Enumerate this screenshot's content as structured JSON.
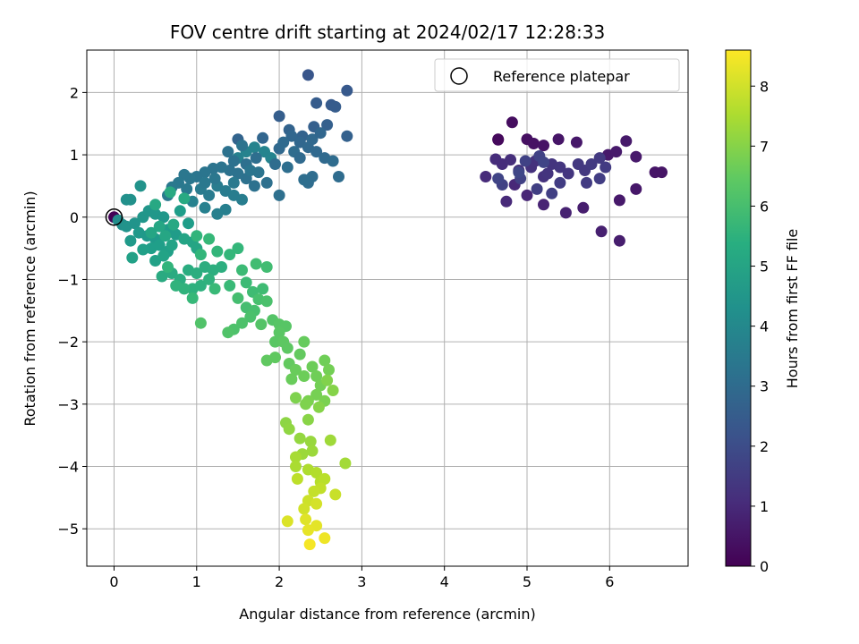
{
  "chart_data": {
    "type": "scatter",
    "title": "FOV centre drift starting at 2024/02/17 12:28:33",
    "xlabel": "Angular distance from reference (arcmin)",
    "ylabel": "Rotation from reference (arcmin)",
    "xlim": [
      -0.33,
      6.95
    ],
    "ylim": [
      -5.6,
      2.68
    ],
    "xticks": [
      0,
      1,
      2,
      3,
      4,
      5,
      6
    ],
    "yticks": [
      -5,
      -4,
      -3,
      -2,
      -1,
      0,
      1,
      2
    ],
    "grid": true,
    "colormap": "viridis",
    "colorbar": {
      "label": "Hours from first FF file",
      "range": [
        0,
        8.6
      ],
      "ticks": [
        0,
        1,
        2,
        3,
        4,
        5,
        6,
        7,
        8
      ]
    },
    "legend": {
      "position": "top-right",
      "entries": [
        "Reference platepar"
      ]
    },
    "reference_point": {
      "x": 0,
      "y": 0
    },
    "points_description": "x = angular distance (arcmin), y = rotation (arcmin), t = hours from first FF file",
    "points": [
      [
        0.0,
        0.0,
        0.05
      ],
      [
        4.65,
        1.25,
        0.15
      ],
      [
        4.65,
        1.24,
        0.2
      ],
      [
        4.82,
        1.52,
        0.3
      ],
      [
        5.0,
        1.25,
        0.35
      ],
      [
        5.08,
        1.18,
        0.4
      ],
      [
        5.2,
        1.15,
        0.45
      ],
      [
        5.38,
        1.25,
        0.5
      ],
      [
        5.6,
        1.2,
        0.55
      ],
      [
        5.98,
        1.0,
        0.6
      ],
      [
        6.08,
        1.05,
        0.62
      ],
      [
        6.2,
        1.22,
        0.58
      ],
      [
        6.32,
        0.97,
        0.6
      ],
      [
        6.55,
        0.72,
        0.5
      ],
      [
        6.63,
        0.72,
        0.48
      ],
      [
        6.32,
        0.45,
        0.55
      ],
      [
        6.12,
        0.27,
        0.6
      ],
      [
        6.12,
        -0.38,
        0.7
      ],
      [
        5.9,
        -0.23,
        0.75
      ],
      [
        5.68,
        0.15,
        0.7
      ],
      [
        5.47,
        0.07,
        0.8
      ],
      [
        5.2,
        0.2,
        0.85
      ],
      [
        5.0,
        0.35,
        0.9
      ],
      [
        4.85,
        0.52,
        0.95
      ],
      [
        4.75,
        0.25,
        1.0
      ],
      [
        4.5,
        0.65,
        1.05
      ],
      [
        4.62,
        0.93,
        1.1
      ],
      [
        4.7,
        0.85,
        1.1
      ],
      [
        4.8,
        0.92,
        1.15
      ],
      [
        4.9,
        0.75,
        1.2
      ],
      [
        5.05,
        0.8,
        1.2
      ],
      [
        5.1,
        0.9,
        1.25
      ],
      [
        5.2,
        0.65,
        1.25
      ],
      [
        5.25,
        0.7,
        1.3
      ],
      [
        5.3,
        0.85,
        1.3
      ],
      [
        5.4,
        0.8,
        1.35
      ],
      [
        5.5,
        0.7,
        1.35
      ],
      [
        5.62,
        0.85,
        1.4
      ],
      [
        5.7,
        0.75,
        1.4
      ],
      [
        5.78,
        0.85,
        1.45
      ],
      [
        5.88,
        0.95,
        1.45
      ],
      [
        5.95,
        0.8,
        1.5
      ],
      [
        5.72,
        0.55,
        1.5
      ],
      [
        5.88,
        0.62,
        1.55
      ],
      [
        5.4,
        0.55,
        1.55
      ],
      [
        5.3,
        0.38,
        1.6
      ],
      [
        5.12,
        0.45,
        1.6
      ],
      [
        4.92,
        0.62,
        1.65
      ],
      [
        4.7,
        0.52,
        1.65
      ],
      [
        4.98,
        0.9,
        1.7
      ],
      [
        5.15,
        0.98,
        1.7
      ],
      [
        5.2,
        0.88,
        1.75
      ],
      [
        4.65,
        0.62,
        1.75
      ],
      [
        4.9,
        0.72,
        1.8
      ],
      [
        2.35,
        2.28,
        2.3
      ],
      [
        2.82,
        2.03,
        2.4
      ],
      [
        2.63,
        1.8,
        2.45
      ],
      [
        2.68,
        1.77,
        2.5
      ],
      [
        2.45,
        1.83,
        2.5
      ],
      [
        2.0,
        1.62,
        2.55
      ],
      [
        2.42,
        1.45,
        2.6
      ],
      [
        2.58,
        1.48,
        2.6
      ],
      [
        2.82,
        1.3,
        2.65
      ],
      [
        2.28,
        1.3,
        2.7
      ],
      [
        2.12,
        1.4,
        2.7
      ],
      [
        1.5,
        1.25,
        2.75
      ],
      [
        1.8,
        1.27,
        2.8
      ],
      [
        2.15,
        1.3,
        2.85
      ],
      [
        2.25,
        1.2,
        2.85
      ],
      [
        2.35,
        1.12,
        2.9
      ],
      [
        2.45,
        1.05,
        2.9
      ],
      [
        2.55,
        0.95,
        2.95
      ],
      [
        2.65,
        0.9,
        3.0
      ],
      [
        2.72,
        0.65,
        3.0
      ],
      [
        2.4,
        0.65,
        3.05
      ],
      [
        2.35,
        0.55,
        3.05
      ],
      [
        2.3,
        0.6,
        3.1
      ],
      [
        2.1,
        0.8,
        3.1
      ],
      [
        2.0,
        0.35,
        3.15
      ],
      [
        1.85,
        0.55,
        3.15
      ],
      [
        1.7,
        0.5,
        3.2
      ],
      [
        1.6,
        0.62,
        3.2
      ],
      [
        1.5,
        0.7,
        3.25
      ],
      [
        1.4,
        0.75,
        3.25
      ],
      [
        1.3,
        0.8,
        3.3
      ],
      [
        1.2,
        0.78,
        3.3
      ],
      [
        1.1,
        0.72,
        3.35
      ],
      [
        1.0,
        0.65,
        3.35
      ],
      [
        0.92,
        0.62,
        3.4
      ],
      [
        0.85,
        0.68,
        3.4
      ],
      [
        0.78,
        0.55,
        3.45
      ],
      [
        0.7,
        0.48,
        3.5
      ],
      [
        0.65,
        0.35,
        3.5
      ],
      [
        1.05,
        0.45,
        3.55
      ],
      [
        1.15,
        0.35,
        3.55
      ],
      [
        1.25,
        0.5,
        3.6
      ],
      [
        1.35,
        0.42,
        3.6
      ],
      [
        1.45,
        0.35,
        3.65
      ],
      [
        1.55,
        0.28,
        3.65
      ],
      [
        1.35,
        0.12,
        3.7
      ],
      [
        1.25,
        0.05,
        3.75
      ],
      [
        1.1,
        0.15,
        3.75
      ],
      [
        0.95,
        0.25,
        3.8
      ],
      [
        1.5,
        0.95,
        3.8
      ],
      [
        1.6,
        1.05,
        3.85
      ],
      [
        1.7,
        1.12,
        3.85
      ],
      [
        1.82,
        1.05,
        3.9
      ],
      [
        1.9,
        0.95,
        3.9
      ],
      [
        2.0,
        1.1,
        2.9
      ],
      [
        2.05,
        1.2,
        2.95
      ],
      [
        2.18,
        1.05,
        3.0
      ],
      [
        1.95,
        0.85,
        3.05
      ],
      [
        1.72,
        0.95,
        3.1
      ],
      [
        1.6,
        0.85,
        3.15
      ],
      [
        1.45,
        0.9,
        3.2
      ],
      [
        1.38,
        1.05,
        3.25
      ],
      [
        1.55,
        1.15,
        3.3
      ],
      [
        2.25,
        0.95,
        2.95
      ],
      [
        2.4,
        1.25,
        2.9
      ],
      [
        2.5,
        1.35,
        2.85
      ],
      [
        1.75,
        0.72,
        3.3
      ],
      [
        1.65,
        0.75,
        3.35
      ],
      [
        1.22,
        0.62,
        3.4
      ],
      [
        1.1,
        0.55,
        3.45
      ],
      [
        0.88,
        0.45,
        3.5
      ],
      [
        1.45,
        0.55,
        3.5
      ],
      [
        0.05,
        -0.05,
        4.2
      ],
      [
        0.1,
        -0.12,
        4.25
      ],
      [
        0.15,
        0.28,
        4.3
      ],
      [
        0.2,
        0.28,
        4.35
      ],
      [
        0.32,
        0.5,
        4.4
      ],
      [
        0.15,
        -0.15,
        4.4
      ],
      [
        0.25,
        -0.1,
        4.45
      ],
      [
        0.35,
        0.0,
        4.5
      ],
      [
        0.42,
        0.1,
        4.5
      ],
      [
        0.5,
        0.05,
        4.55
      ],
      [
        0.6,
        0.0,
        4.55
      ],
      [
        0.3,
        -0.25,
        4.6
      ],
      [
        0.4,
        -0.3,
        4.6
      ],
      [
        0.5,
        -0.35,
        4.65
      ],
      [
        0.2,
        -0.38,
        4.65
      ],
      [
        0.65,
        -0.2,
        4.7
      ],
      [
        0.75,
        -0.28,
        4.7
      ],
      [
        0.8,
        0.1,
        4.75
      ],
      [
        0.9,
        -0.1,
        4.75
      ],
      [
        0.45,
        -0.5,
        4.8
      ],
      [
        0.55,
        -0.45,
        4.8
      ],
      [
        0.65,
        -0.55,
        4.85
      ],
      [
        0.35,
        -0.52,
        4.85
      ],
      [
        0.22,
        -0.65,
        4.9
      ],
      [
        0.5,
        -0.7,
        4.9
      ],
      [
        0.6,
        -0.62,
        4.95
      ],
      [
        0.7,
        -0.45,
        4.95
      ],
      [
        0.85,
        -0.35,
        5.0
      ],
      [
        0.95,
        -0.4,
        5.0
      ],
      [
        1.0,
        -0.5,
        5.05
      ],
      [
        0.45,
        -0.25,
        5.05
      ],
      [
        0.55,
        -0.15,
        5.1
      ],
      [
        0.62,
        -0.3,
        5.1
      ],
      [
        0.72,
        -0.12,
        5.15
      ],
      [
        0.5,
        0.2,
        5.15
      ],
      [
        0.68,
        0.4,
        5.2
      ],
      [
        0.85,
        0.3,
        5.2
      ],
      [
        0.58,
        -0.95,
        5.25
      ],
      [
        0.7,
        -0.9,
        5.25
      ],
      [
        0.8,
        -1.0,
        5.3
      ],
      [
        0.9,
        -0.85,
        5.3
      ],
      [
        1.0,
        -0.9,
        5.35
      ],
      [
        1.1,
        -0.8,
        5.35
      ],
      [
        1.2,
        -0.85,
        5.4
      ],
      [
        1.3,
        -0.8,
        5.4
      ],
      [
        0.95,
        -1.15,
        5.45
      ],
      [
        1.05,
        -1.1,
        5.45
      ],
      [
        1.15,
        -1.0,
        5.5
      ],
      [
        0.85,
        -1.15,
        5.55
      ],
      [
        0.75,
        -1.1,
        5.55
      ],
      [
        0.65,
        -0.8,
        5.6
      ],
      [
        1.0,
        -0.3,
        5.6
      ],
      [
        1.05,
        -0.6,
        5.65
      ],
      [
        1.25,
        -0.55,
        5.65
      ],
      [
        1.4,
        -0.6,
        5.7
      ],
      [
        1.5,
        -0.5,
        5.7
      ],
      [
        1.15,
        -0.35,
        5.75
      ],
      [
        0.95,
        -1.3,
        5.75
      ],
      [
        1.22,
        -1.15,
        5.8
      ],
      [
        1.4,
        -1.1,
        5.8
      ],
      [
        1.55,
        -0.85,
        5.85
      ],
      [
        1.6,
        -1.05,
        5.85
      ],
      [
        1.68,
        -1.2,
        5.9
      ],
      [
        1.8,
        -1.15,
        5.9
      ],
      [
        1.85,
        -0.8,
        5.95
      ],
      [
        1.72,
        -0.75,
        5.95
      ],
      [
        1.5,
        -1.3,
        6.0
      ],
      [
        1.6,
        -1.45,
        6.0
      ],
      [
        1.7,
        -1.5,
        6.05
      ],
      [
        1.75,
        -1.32,
        6.05
      ],
      [
        1.85,
        -1.35,
        6.1
      ],
      [
        1.65,
        -1.6,
        6.1
      ],
      [
        1.55,
        -1.7,
        6.15
      ],
      [
        1.45,
        -1.8,
        6.15
      ],
      [
        1.38,
        -1.85,
        6.2
      ],
      [
        1.05,
        -1.7,
        6.2
      ],
      [
        1.78,
        -1.72,
        6.25
      ],
      [
        1.92,
        -1.65,
        6.25
      ],
      [
        2.0,
        -1.72,
        6.3
      ],
      [
        2.08,
        -1.75,
        6.3
      ],
      [
        2.0,
        -1.85,
        6.35
      ],
      [
        1.95,
        -2.0,
        6.35
      ],
      [
        2.05,
        -2.0,
        6.4
      ],
      [
        2.1,
        -2.1,
        6.4
      ],
      [
        1.95,
        -2.25,
        6.45
      ],
      [
        1.85,
        -2.3,
        6.45
      ],
      [
        2.12,
        -2.35,
        6.5
      ],
      [
        2.25,
        -2.2,
        6.5
      ],
      [
        2.3,
        -2.0,
        6.55
      ],
      [
        2.2,
        -2.45,
        6.6
      ],
      [
        2.15,
        -2.6,
        6.6
      ],
      [
        2.3,
        -2.55,
        6.65
      ],
      [
        2.4,
        -2.4,
        6.65
      ],
      [
        2.45,
        -2.55,
        6.7
      ],
      [
        2.55,
        -2.3,
        6.7
      ],
      [
        2.6,
        -2.45,
        6.75
      ],
      [
        2.5,
        -2.7,
        6.75
      ],
      [
        2.45,
        -2.85,
        6.8
      ],
      [
        2.55,
        -2.95,
        6.85
      ],
      [
        2.35,
        -2.95,
        6.85
      ],
      [
        2.2,
        -2.9,
        6.9
      ],
      [
        2.32,
        -3.0,
        6.9
      ],
      [
        2.58,
        -2.62,
        6.95
      ],
      [
        2.65,
        -2.78,
        7.0
      ],
      [
        2.48,
        -3.05,
        7.0
      ],
      [
        2.35,
        -3.25,
        7.05
      ],
      [
        2.08,
        -3.3,
        7.1
      ],
      [
        2.12,
        -3.4,
        7.15
      ],
      [
        2.25,
        -3.55,
        7.2
      ],
      [
        2.38,
        -3.6,
        7.25
      ],
      [
        2.4,
        -3.75,
        7.3
      ],
      [
        2.28,
        -3.8,
        7.3
      ],
      [
        2.62,
        -3.58,
        7.35
      ],
      [
        2.8,
        -3.95,
        7.4
      ],
      [
        2.2,
        -3.85,
        7.45
      ],
      [
        2.2,
        -4.0,
        7.5
      ],
      [
        2.35,
        -4.05,
        7.55
      ],
      [
        2.45,
        -4.1,
        7.6
      ],
      [
        2.5,
        -4.25,
        7.65
      ],
      [
        2.55,
        -4.2,
        7.7
      ],
      [
        2.22,
        -4.2,
        7.75
      ],
      [
        2.5,
        -4.35,
        7.8
      ],
      [
        2.42,
        -4.4,
        7.85
      ],
      [
        2.68,
        -4.45,
        7.9
      ],
      [
        2.35,
        -4.55,
        7.95
      ],
      [
        2.3,
        -4.68,
        8.0
      ],
      [
        2.45,
        -4.6,
        8.05
      ],
      [
        2.1,
        -4.88,
        8.15
      ],
      [
        2.32,
        -4.85,
        8.2
      ],
      [
        2.45,
        -4.95,
        8.25
      ],
      [
        2.35,
        -5.02,
        8.3
      ],
      [
        2.55,
        -5.15,
        8.4
      ],
      [
        2.37,
        -5.25,
        8.5
      ]
    ]
  }
}
